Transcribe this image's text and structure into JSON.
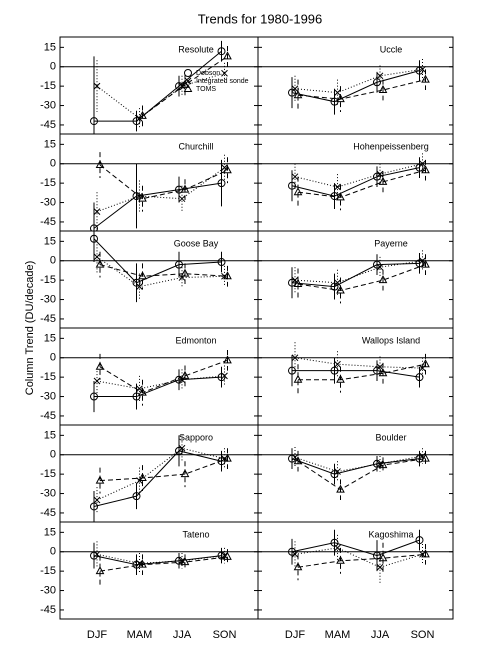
{
  "chart_data": {
    "type": "line",
    "title": "Trends for 1980-1996",
    "y_label": "Column Trend (DU/decade)",
    "categories": [
      "DJF",
      "MAM",
      "JJA",
      "SON"
    ],
    "ylim": [
      -52,
      23
    ],
    "yticks": [
      15,
      0,
      -15,
      -30,
      -45
    ],
    "series": [
      {
        "name": "Dobson",
        "color": "#000000",
        "marker": "circle",
        "dash": "none"
      },
      {
        "name": "Integrated sonde",
        "color": "#000000",
        "marker": "x",
        "dash": "1,2"
      },
      {
        "name": "TOMS",
        "color": "#000000",
        "marker": "triangle",
        "dash": "5,3"
      }
    ],
    "panels": [
      {
        "title": "Resolute",
        "values": [
          [
            -42,
            -42,
            -15,
            12
          ],
          [
            -15,
            -40,
            -15,
            -5
          ],
          [
            null,
            -38,
            -14,
            8
          ]
        ],
        "errors": [
          [
            50,
            8,
            8,
            8
          ],
          [
            20,
            8,
            8,
            8
          ],
          [
            null,
            8,
            8,
            8
          ]
        ]
      },
      {
        "title": "Uccle",
        "values": [
          [
            -20,
            -27,
            -12,
            -3
          ],
          [
            -17,
            -20,
            -7,
            -2
          ],
          [
            -22,
            -25,
            -18,
            -10
          ]
        ],
        "errors": [
          [
            12,
            10,
            8,
            8
          ],
          [
            10,
            10,
            8,
            8
          ],
          [
            12,
            10,
            8,
            8
          ]
        ]
      },
      {
        "title": "Churchill",
        "values": [
          [
            -50,
            -25,
            -20,
            -15
          ],
          [
            -37,
            -25,
            -27,
            -3
          ],
          [
            -1,
            -27,
            -20,
            -5
          ]
        ],
        "errors": [
          [
            20,
            25,
            10,
            18
          ],
          [
            15,
            12,
            10,
            10
          ],
          [
            10,
            10,
            8,
            10
          ]
        ]
      },
      {
        "title": "Hohenpeissenberg",
        "values": [
          [
            -17,
            -25,
            -10,
            -3
          ],
          [
            -10,
            -18,
            -8,
            0
          ],
          [
            -22,
            -26,
            -14,
            -5
          ]
        ],
        "errors": [
          [
            12,
            10,
            8,
            8
          ],
          [
            10,
            10,
            8,
            8
          ],
          [
            12,
            10,
            8,
            8
          ]
        ]
      },
      {
        "title": "Goose Bay",
        "values": [
          [
            17,
            -17,
            -3,
            -1
          ],
          [
            3,
            -20,
            -13,
            -12
          ],
          [
            -3,
            -12,
            -10,
            -12
          ]
        ],
        "errors": [
          [
            18,
            15,
            10,
            8
          ],
          [
            12,
            10,
            8,
            8
          ],
          [
            10,
            10,
            8,
            8
          ]
        ]
      },
      {
        "title": "Payerne",
        "values": [
          [
            -17,
            -20,
            -3,
            -2
          ],
          [
            -15,
            -17,
            -5,
            0
          ],
          [
            -18,
            -23,
            -15,
            -3
          ]
        ],
        "errors": [
          [
            12,
            10,
            8,
            8
          ],
          [
            10,
            10,
            8,
            8
          ],
          [
            12,
            10,
            8,
            8
          ]
        ]
      },
      {
        "title": "Edmonton",
        "values": [
          [
            -30,
            -30,
            -17,
            -15
          ],
          [
            -18,
            -24,
            -17,
            -14
          ],
          [
            -7,
            -27,
            -14,
            -2
          ]
        ],
        "errors": [
          [
            12,
            10,
            8,
            8
          ],
          [
            10,
            10,
            8,
            8
          ],
          [
            10,
            10,
            8,
            8
          ]
        ]
      },
      {
        "title": "Wallops Island",
        "values": [
          [
            -10,
            -10,
            -10,
            -15
          ],
          [
            0,
            -5,
            -7,
            -8
          ],
          [
            -17,
            -17,
            -12,
            -5
          ]
        ],
        "errors": [
          [
            12,
            10,
            8,
            8
          ],
          [
            12,
            10,
            8,
            8
          ],
          [
            12,
            10,
            8,
            8
          ]
        ]
      },
      {
        "title": "Sapporo",
        "values": [
          [
            -40,
            -32,
            3,
            -5
          ],
          [
            -35,
            -20,
            5,
            -3
          ],
          [
            -20,
            -18,
            -15,
            -3
          ]
        ],
        "errors": [
          [
            12,
            10,
            12,
            8
          ],
          [
            10,
            10,
            10,
            8
          ],
          [
            10,
            10,
            10,
            8
          ]
        ]
      },
      {
        "title": "Boulder",
        "values": [
          [
            -3,
            -15,
            -7,
            -3
          ],
          [
            -2,
            -13,
            -7,
            -1
          ],
          [
            -5,
            -27,
            -8,
            -3
          ]
        ],
        "errors": [
          [
            8,
            8,
            6,
            6
          ],
          [
            8,
            8,
            6,
            6
          ],
          [
            8,
            8,
            6,
            6
          ]
        ]
      },
      {
        "title": "Tateno",
        "values": [
          [
            -3,
            -10,
            -7,
            -3
          ],
          [
            -2,
            -9,
            -7,
            -3
          ],
          [
            -15,
            -10,
            -8,
            -4
          ]
        ],
        "errors": [
          [
            10,
            8,
            6,
            6
          ],
          [
            10,
            8,
            6,
            6
          ],
          [
            12,
            8,
            6,
            6
          ]
        ]
      },
      {
        "title": "Kagoshima",
        "values": [
          [
            0,
            7,
            -3,
            9
          ],
          [
            -2,
            3,
            -12,
            -2
          ],
          [
            -12,
            -7,
            -5,
            -2
          ]
        ],
        "errors": [
          [
            10,
            10,
            12,
            8
          ],
          [
            10,
            10,
            12,
            8
          ],
          [
            10,
            10,
            12,
            8
          ]
        ]
      }
    ]
  }
}
